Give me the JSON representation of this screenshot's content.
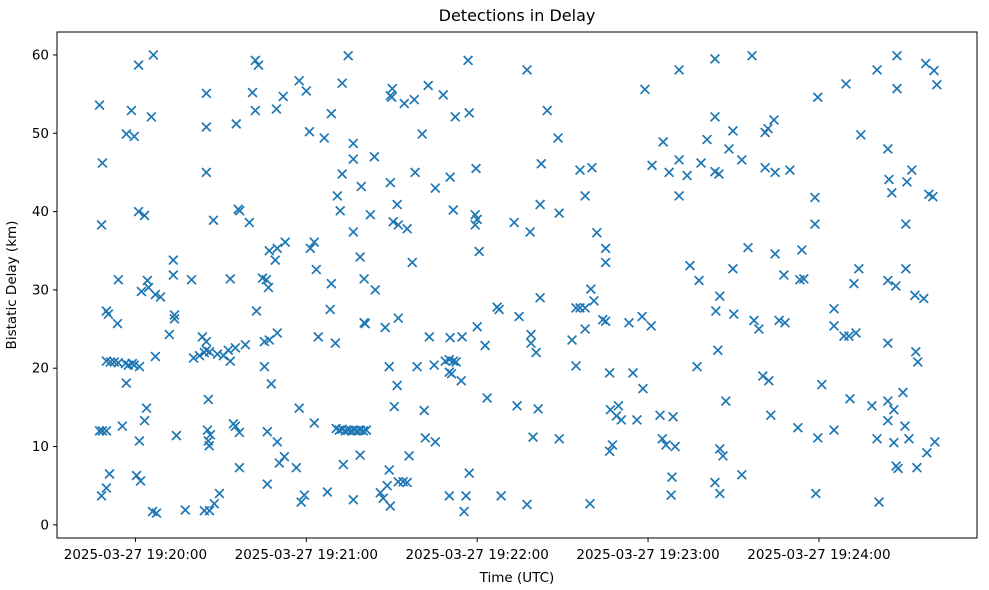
{
  "chart_data": {
    "type": "scatter",
    "title": "Detections in Delay",
    "xlabel": "Time (UTC)",
    "ylabel": "Bistatic Delay (km)",
    "marker": "x",
    "marker_color": "#1f77b4",
    "grid": false,
    "legend": null,
    "x_axis": {
      "label": "Time (UTC)",
      "unit": "minutes after 2025-03-27 19:20:00 UTC",
      "range_minutes": [
        -0.459,
        4.925
      ],
      "ticks": [
        {
          "minute": 0,
          "label": "2025-03-27 19:20:00"
        },
        {
          "minute": 1,
          "label": "2025-03-27 19:21:00"
        },
        {
          "minute": 2,
          "label": "2025-03-27 19:22:00"
        },
        {
          "minute": 3,
          "label": "2025-03-27 19:23:00"
        },
        {
          "minute": 4,
          "label": "2025-03-27 19:24:00"
        }
      ]
    },
    "y_axis": {
      "label": "Bistatic Delay (km)",
      "range": [
        -1.68,
        62.93
      ],
      "ticks": [
        0,
        10,
        20,
        30,
        40,
        50,
        60
      ]
    },
    "points_format": [
      "seconds_after_19:20:00",
      "bistatic_delay_km"
    ],
    "points": [
      [
        6.3,
        60.0
      ],
      [
        1.1,
        58.7
      ],
      [
        24.9,
        55.1
      ],
      [
        -12.6,
        53.6
      ],
      [
        -1.4,
        52.9
      ],
      [
        5.6,
        52.1
      ],
      [
        24.9,
        50.8
      ],
      [
        -3.2,
        49.9
      ],
      [
        -0.4,
        49.6
      ],
      [
        -11.6,
        46.2
      ],
      [
        24.9,
        45.0
      ],
      [
        1.1,
        40.0
      ],
      [
        3.2,
        39.5
      ],
      [
        -11.9,
        38.3
      ],
      [
        13.3,
        33.8
      ],
      [
        13.3,
        31.9
      ],
      [
        -6.0,
        31.3
      ],
      [
        4.2,
        31.2
      ],
      [
        19.7,
        31.3
      ],
      [
        2.1,
        29.8
      ],
      [
        4.6,
        30.3
      ],
      [
        7.0,
        29.4
      ],
      [
        8.8,
        29.1
      ],
      [
        -10.2,
        27.3
      ],
      [
        -9.5,
        26.9
      ],
      [
        -6.3,
        25.7
      ],
      [
        13.7,
        26.8
      ],
      [
        13.7,
        26.3
      ],
      [
        11.9,
        24.3
      ],
      [
        23.5,
        24.0
      ],
      [
        24.9,
        23.4
      ],
      [
        7.0,
        21.5
      ],
      [
        -10.2,
        20.9
      ],
      [
        -8.8,
        20.8
      ],
      [
        -7.4,
        20.8
      ],
      [
        -6.0,
        20.7
      ],
      [
        -3.5,
        20.6
      ],
      [
        -2.5,
        20.4
      ],
      [
        -1.1,
        20.6
      ],
      [
        -0.4,
        20.4
      ],
      [
        1.4,
        20.2
      ],
      [
        20.4,
        21.3
      ],
      [
        22.5,
        21.6
      ],
      [
        24.2,
        22.0
      ],
      [
        24.9,
        22.3
      ],
      [
        -3.2,
        18.1
      ],
      [
        3.9,
        14.9
      ],
      [
        3.2,
        13.3
      ],
      [
        -4.6,
        12.6
      ],
      [
        -12.6,
        12.0
      ],
      [
        -11.6,
        12.0
      ],
      [
        -10.2,
        12.0
      ],
      [
        1.4,
        10.7
      ],
      [
        14.4,
        11.4
      ],
      [
        -9.1,
        6.5
      ],
      [
        0.4,
        6.3
      ],
      [
        1.8,
        5.6
      ],
      [
        -10.2,
        4.7
      ],
      [
        -11.9,
        3.7
      ],
      [
        6.0,
        1.7
      ],
      [
        7.4,
        1.5
      ],
      [
        17.5,
        1.9
      ],
      [
        24.2,
        1.8
      ],
      [
        26.0,
        1.8
      ],
      [
        42.1,
        59.3
      ],
      [
        43.2,
        58.7
      ],
      [
        74.7,
        59.9
      ],
      [
        57.5,
        56.7
      ],
      [
        60.0,
        55.4
      ],
      [
        72.6,
        56.4
      ],
      [
        41.1,
        55.2
      ],
      [
        51.9,
        54.7
      ],
      [
        49.5,
        53.1
      ],
      [
        42.1,
        52.9
      ],
      [
        68.8,
        52.5
      ],
      [
        35.4,
        51.2
      ],
      [
        61.1,
        50.2
      ],
      [
        66.3,
        49.4
      ],
      [
        76.5,
        48.7
      ],
      [
        76.5,
        46.7
      ],
      [
        72.6,
        44.8
      ],
      [
        70.9,
        42.0
      ],
      [
        71.9,
        40.1
      ],
      [
        36.1,
        40.3
      ],
      [
        36.6,
        40.1
      ],
      [
        27.4,
        38.9
      ],
      [
        40.0,
        38.6
      ],
      [
        76.5,
        37.4
      ],
      [
        62.8,
        36.1
      ],
      [
        61.4,
        35.3
      ],
      [
        52.6,
        36.1
      ],
      [
        49.8,
        35.3
      ],
      [
        47.0,
        35.0
      ],
      [
        49.1,
        33.8
      ],
      [
        78.9,
        34.2
      ],
      [
        63.5,
        32.6
      ],
      [
        33.3,
        31.4
      ],
      [
        44.6,
        31.5
      ],
      [
        46.0,
        31.3
      ],
      [
        68.8,
        30.8
      ],
      [
        46.7,
        30.3
      ],
      [
        42.5,
        27.3
      ],
      [
        68.4,
        27.5
      ],
      [
        80.3,
        25.8
      ],
      [
        49.8,
        24.5
      ],
      [
        47.0,
        23.6
      ],
      [
        45.3,
        23.4
      ],
      [
        64.2,
        24.0
      ],
      [
        70.2,
        23.2
      ],
      [
        38.6,
        23.0
      ],
      [
        35.1,
        22.6
      ],
      [
        32.6,
        22.3
      ],
      [
        28.8,
        21.8
      ],
      [
        26.0,
        22.1
      ],
      [
        30.9,
        21.6
      ],
      [
        33.3,
        20.9
      ],
      [
        45.3,
        20.2
      ],
      [
        47.7,
        18.0
      ],
      [
        25.6,
        16.0
      ],
      [
        57.5,
        14.9
      ],
      [
        62.8,
        13.0
      ],
      [
        34.4,
        12.9
      ],
      [
        35.1,
        12.6
      ],
      [
        36.5,
        11.8
      ],
      [
        25.3,
        12.1
      ],
      [
        26.3,
        11.5
      ],
      [
        25.6,
        10.7
      ],
      [
        25.9,
        10.1
      ],
      [
        46.3,
        11.9
      ],
      [
        49.8,
        10.6
      ],
      [
        78.9,
        8.9
      ],
      [
        52.3,
        8.7
      ],
      [
        50.5,
        7.9
      ],
      [
        56.5,
        7.3
      ],
      [
        73.0,
        7.7
      ],
      [
        36.5,
        7.3
      ],
      [
        46.3,
        5.2
      ],
      [
        59.3,
        3.8
      ],
      [
        58.2,
        2.9
      ],
      [
        67.4,
        4.2
      ],
      [
        29.5,
        4.0
      ],
      [
        27.7,
        2.7
      ],
      [
        76.5,
        3.2
      ],
      [
        116.8,
        59.3
      ],
      [
        102.8,
        56.1
      ],
      [
        90.2,
        55.7
      ],
      [
        89.5,
        54.8
      ],
      [
        90.0,
        54.6
      ],
      [
        94.4,
        53.8
      ],
      [
        97.9,
        54.3
      ],
      [
        108.1,
        54.9
      ],
      [
        112.3,
        52.1
      ],
      [
        117.2,
        52.6
      ],
      [
        100.7,
        49.9
      ],
      [
        83.9,
        47.0
      ],
      [
        98.2,
        45.0
      ],
      [
        110.5,
        44.4
      ],
      [
        119.6,
        45.5
      ],
      [
        89.5,
        43.7
      ],
      [
        79.3,
        43.2
      ],
      [
        105.3,
        43.0
      ],
      [
        91.9,
        40.9
      ],
      [
        111.6,
        40.2
      ],
      [
        119.3,
        39.6
      ],
      [
        120.0,
        39.0
      ],
      [
        119.3,
        38.3
      ],
      [
        82.5,
        39.6
      ],
      [
        90.5,
        38.7
      ],
      [
        92.3,
        38.3
      ],
      [
        95.4,
        37.8
      ],
      [
        133.0,
        38.6
      ],
      [
        120.7,
        34.9
      ],
      [
        97.2,
        33.5
      ],
      [
        80.3,
        31.4
      ],
      [
        84.2,
        30.0
      ],
      [
        127.0,
        27.8
      ],
      [
        127.7,
        27.5
      ],
      [
        134.7,
        26.6
      ],
      [
        92.3,
        26.4
      ],
      [
        80.7,
        25.7
      ],
      [
        87.7,
        25.2
      ],
      [
        120.0,
        25.3
      ],
      [
        103.2,
        24.0
      ],
      [
        110.5,
        23.9
      ],
      [
        114.7,
        24.0
      ],
      [
        122.8,
        22.9
      ],
      [
        108.8,
        20.9
      ],
      [
        110.2,
        21.1
      ],
      [
        111.6,
        20.9
      ],
      [
        112.6,
        20.8
      ],
      [
        89.1,
        20.2
      ],
      [
        98.9,
        20.2
      ],
      [
        104.9,
        20.4
      ],
      [
        110.2,
        19.5
      ],
      [
        111.0,
        19.3
      ],
      [
        114.4,
        18.4
      ],
      [
        91.9,
        17.8
      ],
      [
        123.5,
        16.2
      ],
      [
        90.9,
        15.1
      ],
      [
        101.4,
        14.6
      ],
      [
        134.0,
        15.2
      ],
      [
        70.5,
        12.3
      ],
      [
        71.6,
        12.1
      ],
      [
        72.6,
        12.2
      ],
      [
        73.7,
        12.0
      ],
      [
        74.7,
        12.1
      ],
      [
        75.8,
        12.0
      ],
      [
        76.8,
        12.1
      ],
      [
        77.9,
        12.0
      ],
      [
        78.9,
        12.1
      ],
      [
        80.0,
        12.0
      ],
      [
        81.1,
        12.1
      ],
      [
        101.8,
        11.1
      ],
      [
        105.3,
        10.6
      ],
      [
        96.1,
        8.8
      ],
      [
        89.1,
        7.0
      ],
      [
        117.2,
        6.6
      ],
      [
        88.4,
        5.0
      ],
      [
        92.3,
        5.5
      ],
      [
        94.0,
        5.5
      ],
      [
        95.4,
        5.4
      ],
      [
        86.0,
        4.1
      ],
      [
        87.0,
        3.4
      ],
      [
        110.2,
        3.7
      ],
      [
        116.1,
        3.7
      ],
      [
        128.4,
        3.7
      ],
      [
        89.5,
        2.4
      ],
      [
        115.4,
        1.7
      ],
      [
        137.5,
        58.1
      ],
      [
        178.9,
        55.6
      ],
      [
        144.6,
        52.9
      ],
      [
        148.4,
        49.4
      ],
      [
        185.3,
        48.9
      ],
      [
        142.5,
        46.1
      ],
      [
        156.1,
        45.3
      ],
      [
        160.3,
        45.6
      ],
      [
        181.4,
        45.9
      ],
      [
        187.4,
        45.0
      ],
      [
        157.9,
        42.0
      ],
      [
        142.1,
        40.9
      ],
      [
        148.8,
        39.8
      ],
      [
        138.6,
        37.4
      ],
      [
        162.0,
        37.3
      ],
      [
        165.1,
        35.3
      ],
      [
        165.1,
        33.5
      ],
      [
        159.9,
        30.1
      ],
      [
        142.1,
        29.0
      ],
      [
        161.0,
        28.6
      ],
      [
        157.9,
        27.7
      ],
      [
        156.1,
        27.7
      ],
      [
        154.7,
        27.7
      ],
      [
        164.1,
        26.2
      ],
      [
        165.1,
        26.0
      ],
      [
        173.3,
        25.8
      ],
      [
        177.9,
        26.6
      ],
      [
        181.1,
        25.4
      ],
      [
        138.9,
        24.3
      ],
      [
        138.9,
        23.2
      ],
      [
        153.3,
        23.6
      ],
      [
        140.7,
        22.0
      ],
      [
        157.9,
        25.0
      ],
      [
        154.7,
        20.3
      ],
      [
        166.5,
        19.4
      ],
      [
        174.7,
        19.4
      ],
      [
        178.2,
        17.4
      ],
      [
        141.4,
        14.8
      ],
      [
        166.8,
        14.7
      ],
      [
        169.6,
        15.2
      ],
      [
        168.9,
        13.9
      ],
      [
        170.6,
        13.4
      ],
      [
        176.1,
        13.4
      ],
      [
        184.2,
        14.0
      ],
      [
        188.8,
        13.8
      ],
      [
        139.6,
        11.2
      ],
      [
        148.8,
        11.0
      ],
      [
        185.0,
        11.0
      ],
      [
        186.3,
        10.2
      ],
      [
        167.5,
        10.2
      ],
      [
        166.5,
        9.4
      ],
      [
        188.1,
        3.8
      ],
      [
        137.5,
        2.6
      ],
      [
        159.6,
        2.7
      ],
      [
        203.5,
        59.5
      ],
      [
        216.5,
        59.9
      ],
      [
        190.9,
        58.1
      ],
      [
        239.6,
        54.6
      ],
      [
        203.5,
        52.1
      ],
      [
        224.2,
        51.7
      ],
      [
        209.8,
        50.3
      ],
      [
        221.1,
        50.1
      ],
      [
        222.1,
        50.6
      ],
      [
        200.7,
        49.2
      ],
      [
        208.4,
        48.0
      ],
      [
        190.9,
        46.6
      ],
      [
        198.6,
        46.2
      ],
      [
        212.9,
        46.6
      ],
      [
        193.7,
        44.6
      ],
      [
        203.5,
        45.1
      ],
      [
        204.9,
        44.8
      ],
      [
        221.1,
        45.6
      ],
      [
        224.6,
        45.0
      ],
      [
        229.8,
        45.3
      ],
      [
        190.9,
        42.0
      ],
      [
        238.6,
        41.8
      ],
      [
        238.6,
        38.4
      ],
      [
        215.1,
        35.4
      ],
      [
        224.6,
        34.6
      ],
      [
        234.0,
        35.1
      ],
      [
        194.7,
        33.1
      ],
      [
        209.8,
        32.7
      ],
      [
        197.9,
        31.2
      ],
      [
        227.7,
        31.9
      ],
      [
        233.3,
        31.3
      ],
      [
        234.7,
        31.4
      ],
      [
        205.2,
        29.2
      ],
      [
        203.8,
        27.3
      ],
      [
        210.1,
        26.9
      ],
      [
        217.2,
        26.1
      ],
      [
        218.9,
        25.0
      ],
      [
        226.0,
        26.1
      ],
      [
        228.1,
        25.8
      ],
      [
        197.2,
        20.2
      ],
      [
        204.5,
        22.3
      ],
      [
        220.3,
        19.0
      ],
      [
        222.4,
        18.4
      ],
      [
        241.0,
        17.9
      ],
      [
        207.3,
        15.8
      ],
      [
        223.1,
        14.0
      ],
      [
        232.6,
        12.4
      ],
      [
        239.6,
        11.1
      ],
      [
        189.5,
        10.0
      ],
      [
        205.2,
        9.7
      ],
      [
        206.3,
        8.8
      ],
      [
        188.4,
        6.1
      ],
      [
        212.9,
        6.4
      ],
      [
        203.5,
        5.4
      ],
      [
        205.2,
        4.0
      ],
      [
        238.9,
        4.0
      ],
      [
        267.4,
        59.9
      ],
      [
        277.5,
        58.9
      ],
      [
        280.4,
        58.0
      ],
      [
        260.4,
        58.1
      ],
      [
        249.5,
        56.3
      ],
      [
        267.4,
        55.7
      ],
      [
        281.4,
        56.2
      ],
      [
        254.7,
        49.8
      ],
      [
        264.2,
        48.0
      ],
      [
        272.6,
        45.3
      ],
      [
        264.6,
        44.1
      ],
      [
        270.9,
        43.8
      ],
      [
        265.6,
        42.4
      ],
      [
        278.6,
        42.2
      ],
      [
        280.0,
        41.9
      ],
      [
        270.5,
        38.4
      ],
      [
        254.0,
        32.7
      ],
      [
        270.5,
        32.7
      ],
      [
        252.3,
        30.8
      ],
      [
        264.2,
        31.2
      ],
      [
        267.0,
        30.5
      ],
      [
        273.7,
        29.3
      ],
      [
        276.8,
        28.9
      ],
      [
        245.3,
        27.6
      ],
      [
        245.3,
        25.4
      ],
      [
        248.8,
        24.1
      ],
      [
        250.5,
        24.1
      ],
      [
        253.0,
        24.5
      ],
      [
        264.2,
        23.2
      ],
      [
        274.0,
        22.1
      ],
      [
        274.7,
        20.8
      ],
      [
        250.9,
        16.1
      ],
      [
        258.6,
        15.2
      ],
      [
        264.2,
        15.8
      ],
      [
        269.5,
        16.9
      ],
      [
        266.3,
        14.7
      ],
      [
        264.2,
        13.3
      ],
      [
        270.2,
        12.6
      ],
      [
        245.3,
        12.1
      ],
      [
        260.4,
        11.0
      ],
      [
        266.3,
        10.5
      ],
      [
        271.6,
        11.0
      ],
      [
        280.7,
        10.6
      ],
      [
        277.9,
        9.2
      ],
      [
        267.1,
        7.5
      ],
      [
        267.8,
        7.2
      ],
      [
        274.4,
        7.3
      ],
      [
        261.1,
        2.9
      ]
    ]
  }
}
